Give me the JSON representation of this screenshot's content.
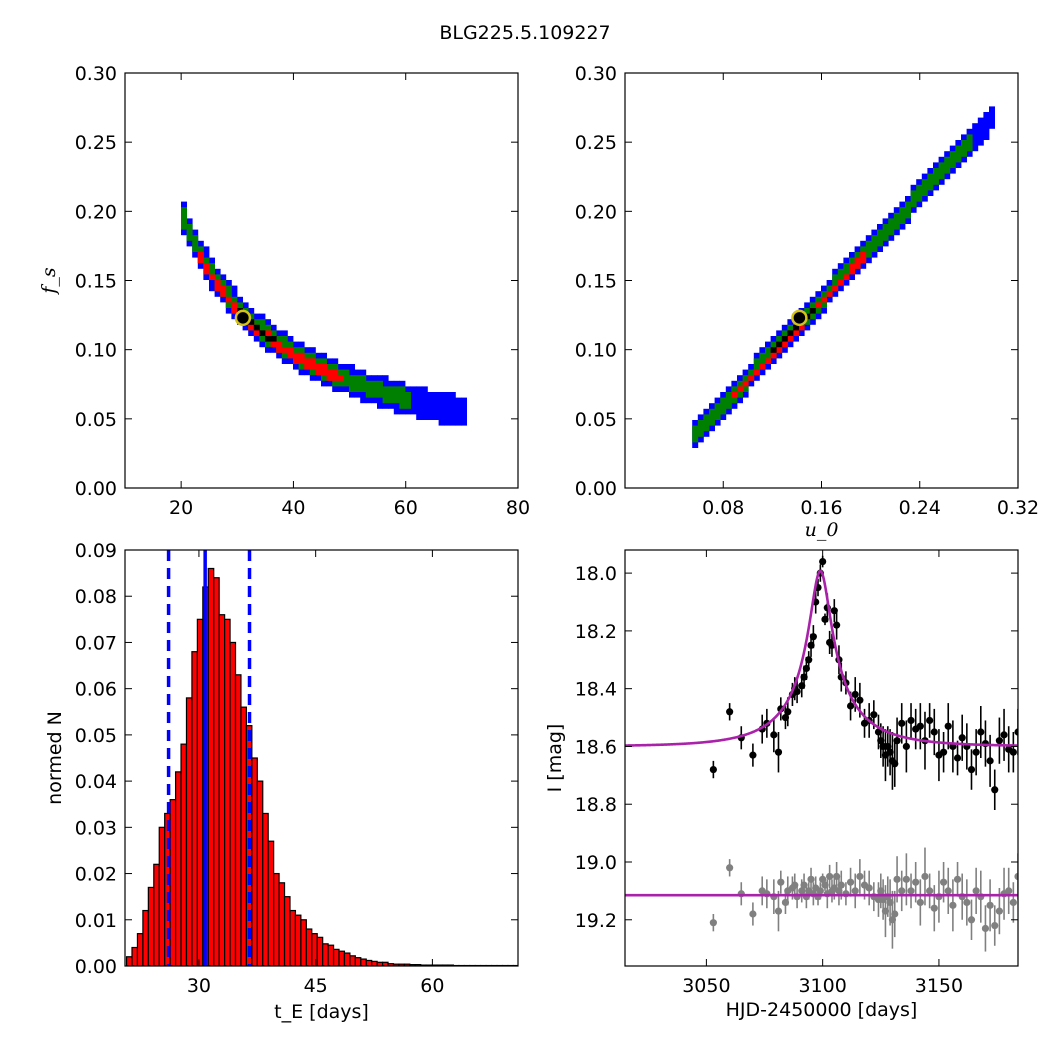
{
  "figure": {
    "title": "BLG225.5.109227"
  },
  "chart_data": [
    {
      "type": "heatmap",
      "panel": "top-left",
      "xlabel": "",
      "ylabel": "f_s",
      "xlim": [
        10,
        80
      ],
      "ylim": [
        0,
        0.3
      ],
      "xticks": [
        20,
        40,
        60,
        80
      ],
      "xtick_labels": [
        "20",
        "40",
        "60",
        "80"
      ],
      "yticks": [
        0.0,
        0.05,
        0.1,
        0.15,
        0.2,
        0.25,
        0.3
      ],
      "ytick_labels": [
        "0.00",
        "0.05",
        "0.10",
        "0.15",
        "0.20",
        "0.25",
        "0.30"
      ],
      "levels": [
        "blue",
        "green",
        "red",
        "black"
      ],
      "colors": {
        "blue": "#0000ff",
        "green": "#008000",
        "red": "#ff0000",
        "black": "#000000"
      },
      "curve_fs_tE_product": 3.8,
      "bands": [
        {
          "level": "blue",
          "x_range": [
            19.5,
            70
          ],
          "width": 0.011
        },
        {
          "level": "green",
          "x_range": [
            19.5,
            60
          ],
          "width": 0.0065
        },
        {
          "level": "red",
          "x_range": [
            23,
            48
          ],
          "width": 0.0035
        },
        {
          "level": "black",
          "x_range": [
            29.5,
            36
          ],
          "width": 0.0012
        }
      ],
      "best_fit": {
        "x": 31,
        "y": 0.123
      }
    },
    {
      "type": "heatmap",
      "panel": "top-right",
      "xlabel": "u_0",
      "ylabel": "",
      "xlim": [
        0.0,
        0.32
      ],
      "ylim": [
        0,
        0.3
      ],
      "xticks": [
        0.08,
        0.16,
        0.24,
        0.32
      ],
      "xtick_labels": [
        "0.08",
        "0.16",
        "0.24",
        "0.32"
      ],
      "yticks": [
        0.0,
        0.05,
        0.1,
        0.15,
        0.2,
        0.25,
        0.3
      ],
      "ytick_labels": [
        "0.00",
        "0.05",
        "0.10",
        "0.15",
        "0.20",
        "0.25",
        "0.30"
      ],
      "levels": [
        "blue",
        "green",
        "red",
        "black"
      ],
      "colors": {
        "blue": "#0000ff",
        "green": "#008000",
        "red": "#ff0000",
        "black": "#000000"
      },
      "line_slope": 0.95,
      "line_intercept": -0.014,
      "bands": [
        {
          "level": "blue",
          "x_range": [
            0.055,
            0.3
          ],
          "width": 0.01
        },
        {
          "level": "green",
          "x_range": [
            0.055,
            0.28
          ],
          "width": 0.006
        },
        {
          "level": "red",
          "x_range": [
            0.085,
            0.19
          ],
          "width": 0.0028
        },
        {
          "level": "black",
          "x_range": [
            0.12,
            0.155
          ],
          "width": 0.0012
        }
      ],
      "best_fit": {
        "x": 0.142,
        "y": 0.123
      }
    },
    {
      "type": "bar",
      "panel": "bottom-left",
      "xlabel": "t_E [days]",
      "ylabel": "normed N",
      "xlim": [
        20.5,
        71
      ],
      "ylim": [
        0,
        0.09
      ],
      "xticks": [
        30,
        45,
        60
      ],
      "xtick_labels": [
        "30",
        "45",
        "60"
      ],
      "yticks": [
        0.0,
        0.01,
        0.02,
        0.03,
        0.04,
        0.05,
        0.06,
        0.07,
        0.08,
        0.09
      ],
      "ytick_labels": [
        "0.00",
        "0.01",
        "0.02",
        "0.03",
        "0.04",
        "0.05",
        "0.06",
        "0.07",
        "0.08",
        "0.09"
      ],
      "bin_start": 20.7,
      "bin_width": 0.7,
      "values": [
        0.002,
        0.004,
        0.007,
        0.012,
        0.017,
        0.022,
        0.03,
        0.033,
        0.036,
        0.042,
        0.048,
        0.058,
        0.068,
        0.075,
        0.082,
        0.086,
        0.084,
        0.076,
        0.075,
        0.07,
        0.063,
        0.056,
        0.052,
        0.045,
        0.04,
        0.033,
        0.027,
        0.02,
        0.018,
        0.015,
        0.012,
        0.011,
        0.01,
        0.008,
        0.007,
        0.0062,
        0.0048,
        0.0045,
        0.0036,
        0.0032,
        0.0028,
        0.0022,
        0.0018,
        0.0015,
        0.0012,
        0.001,
        0.0008,
        0.0008,
        0.0005,
        0.0004,
        0.0004,
        0.0004,
        0.0003,
        0.0003,
        0.0002,
        0.0002,
        0.0002,
        0.0002,
        0.0002,
        0.0002,
        0.0001,
        0.0001,
        0.0001,
        0.0001,
        0.0001,
        0.0001,
        0.0001,
        0.0001,
        0.0001,
        0.0001,
        0.0001,
        0.0001
      ],
      "bar_color": "#ff0000",
      "median": 30.8,
      "interval": [
        26.1,
        36.5
      ],
      "line_color": "#0000ff"
    },
    {
      "type": "scatter",
      "panel": "bottom-right",
      "xlabel": "HJD-2450000 [days]",
      "ylabel": "I [mag]",
      "xlim": [
        3015,
        3184
      ],
      "ylim": [
        19.36,
        17.92
      ],
      "xticks": [
        3050,
        3100,
        3150
      ],
      "xtick_labels": [
        "3050",
        "3100",
        "3150"
      ],
      "yticks": [
        18.0,
        18.2,
        18.4,
        18.6,
        18.8,
        19.0,
        19.2
      ],
      "ytick_labels": [
        "18.0",
        "18.2",
        "18.4",
        "18.6",
        "18.8",
        "19.0",
        "19.2"
      ],
      "model": {
        "t0": 3099,
        "tE": 31,
        "u0": 0.142,
        "fs": 0.123,
        "baseline": 18.6,
        "color": "#aa22aa"
      },
      "residual_baseline": 19.115,
      "series": [
        {
          "color": "#000000",
          "x": [
            3053,
            3060,
            3065,
            3070,
            3074,
            3076,
            3079,
            3081,
            3082,
            3084,
            3085,
            3087,
            3088,
            3089,
            3091,
            3092,
            3093,
            3094,
            3095,
            3096,
            3097,
            3098,
            3099,
            3100,
            3101,
            3102,
            3103,
            3104,
            3105,
            3106,
            3107,
            3108,
            3110,
            3112,
            3114,
            3116,
            3118,
            3120,
            3122,
            3124,
            3125,
            3126,
            3127,
            3128,
            3129,
            3130,
            3131,
            3132,
            3134,
            3136,
            3138,
            3140,
            3142,
            3144,
            3146,
            3148,
            3150,
            3152,
            3154,
            3156,
            3158,
            3160,
            3162,
            3164,
            3166,
            3168,
            3170,
            3172,
            3174,
            3176,
            3178,
            3180,
            3182,
            3184
          ],
          "y": [
            18.68,
            18.48,
            18.57,
            18.63,
            18.54,
            18.52,
            18.56,
            18.62,
            18.47,
            18.5,
            18.48,
            18.42,
            18.4,
            18.41,
            18.39,
            18.36,
            18.33,
            18.3,
            18.25,
            18.22,
            18.1,
            18.05,
            18.0,
            17.96,
            18.16,
            18.12,
            18.24,
            18.25,
            18.13,
            18.18,
            18.3,
            18.36,
            18.38,
            18.46,
            18.42,
            18.44,
            18.52,
            18.51,
            18.49,
            18.55,
            18.58,
            18.6,
            18.63,
            18.6,
            18.62,
            18.65,
            18.66,
            18.58,
            18.52,
            18.6,
            18.51,
            18.54,
            18.53,
            18.58,
            18.51,
            18.55,
            18.63,
            18.62,
            18.53,
            18.6,
            18.64,
            18.57,
            18.6,
            18.68,
            18.62,
            18.55,
            18.59,
            18.65,
            18.75,
            18.58,
            18.56,
            18.61,
            18.62,
            18.55
          ],
          "err": [
            0.03,
            0.03,
            0.04,
            0.04,
            0.05,
            0.05,
            0.06,
            0.07,
            0.04,
            0.04,
            0.05,
            0.04,
            0.04,
            0.04,
            0.04,
            0.04,
            0.04,
            0.03,
            0.04,
            0.04,
            0.04,
            0.03,
            0.03,
            0.02,
            0.02,
            0.05,
            0.04,
            0.04,
            0.04,
            0.05,
            0.05,
            0.05,
            0.04,
            0.05,
            0.06,
            0.06,
            0.05,
            0.06,
            0.05,
            0.06,
            0.06,
            0.07,
            0.09,
            0.07,
            0.08,
            0.1,
            0.08,
            0.08,
            0.07,
            0.09,
            0.06,
            0.07,
            0.08,
            0.1,
            0.06,
            0.08,
            0.09,
            0.07,
            0.08,
            0.09,
            0.06,
            0.08,
            0.08,
            0.07,
            0.08,
            0.09,
            0.08,
            0.09,
            0.07,
            0.08,
            0.09,
            0.08,
            0.07,
            0.08
          ]
        },
        {
          "color": "#808080",
          "x": [
            3053,
            3060,
            3065,
            3070,
            3074,
            3076,
            3079,
            3081,
            3082,
            3084,
            3085,
            3087,
            3088,
            3089,
            3091,
            3092,
            3093,
            3094,
            3095,
            3096,
            3097,
            3098,
            3099,
            3100,
            3101,
            3102,
            3103,
            3104,
            3105,
            3106,
            3107,
            3108,
            3110,
            3112,
            3114,
            3116,
            3118,
            3120,
            3122,
            3124,
            3125,
            3126,
            3127,
            3128,
            3129,
            3130,
            3131,
            3132,
            3134,
            3136,
            3138,
            3140,
            3142,
            3144,
            3146,
            3148,
            3150,
            3152,
            3154,
            3156,
            3158,
            3160,
            3162,
            3164,
            3166,
            3168,
            3170,
            3172,
            3174,
            3176,
            3178,
            3180,
            3182,
            3184
          ],
          "y": [
            19.21,
            19.02,
            19.11,
            19.18,
            19.1,
            19.11,
            19.12,
            19.17,
            19.07,
            19.14,
            19.1,
            19.09,
            19.08,
            19.12,
            19.1,
            19.08,
            19.12,
            19.1,
            19.06,
            19.11,
            19.09,
            19.12,
            19.1,
            19.06,
            19.08,
            19.11,
            19.05,
            19.1,
            19.09,
            19.05,
            19.1,
            19.08,
            19.11,
            19.07,
            19.1,
            19.05,
            19.08,
            19.09,
            19.12,
            19.13,
            19.1,
            19.13,
            19.17,
            19.12,
            19.14,
            19.2,
            19.18,
            19.06,
            19.1,
            19.06,
            19.1,
            19.07,
            19.14,
            19.05,
            19.1,
            19.16,
            19.12,
            19.07,
            19.1,
            19.15,
            19.06,
            19.12,
            19.14,
            19.2,
            19.1,
            19.12,
            19.23,
            19.15,
            19.22,
            19.17,
            19.11,
            19.1,
            19.14,
            19.05
          ],
          "err": [
            0.03,
            0.03,
            0.04,
            0.04,
            0.05,
            0.05,
            0.06,
            0.07,
            0.04,
            0.04,
            0.05,
            0.04,
            0.04,
            0.04,
            0.04,
            0.04,
            0.04,
            0.03,
            0.04,
            0.04,
            0.04,
            0.03,
            0.03,
            0.02,
            0.02,
            0.05,
            0.04,
            0.04,
            0.04,
            0.05,
            0.05,
            0.05,
            0.04,
            0.05,
            0.06,
            0.06,
            0.05,
            0.06,
            0.05,
            0.06,
            0.06,
            0.07,
            0.09,
            0.07,
            0.08,
            0.1,
            0.08,
            0.08,
            0.07,
            0.09,
            0.06,
            0.07,
            0.08,
            0.1,
            0.06,
            0.08,
            0.09,
            0.07,
            0.08,
            0.09,
            0.06,
            0.08,
            0.08,
            0.07,
            0.08,
            0.09,
            0.08,
            0.09,
            0.07,
            0.08,
            0.09,
            0.08,
            0.07,
            0.08
          ]
        }
      ]
    }
  ]
}
